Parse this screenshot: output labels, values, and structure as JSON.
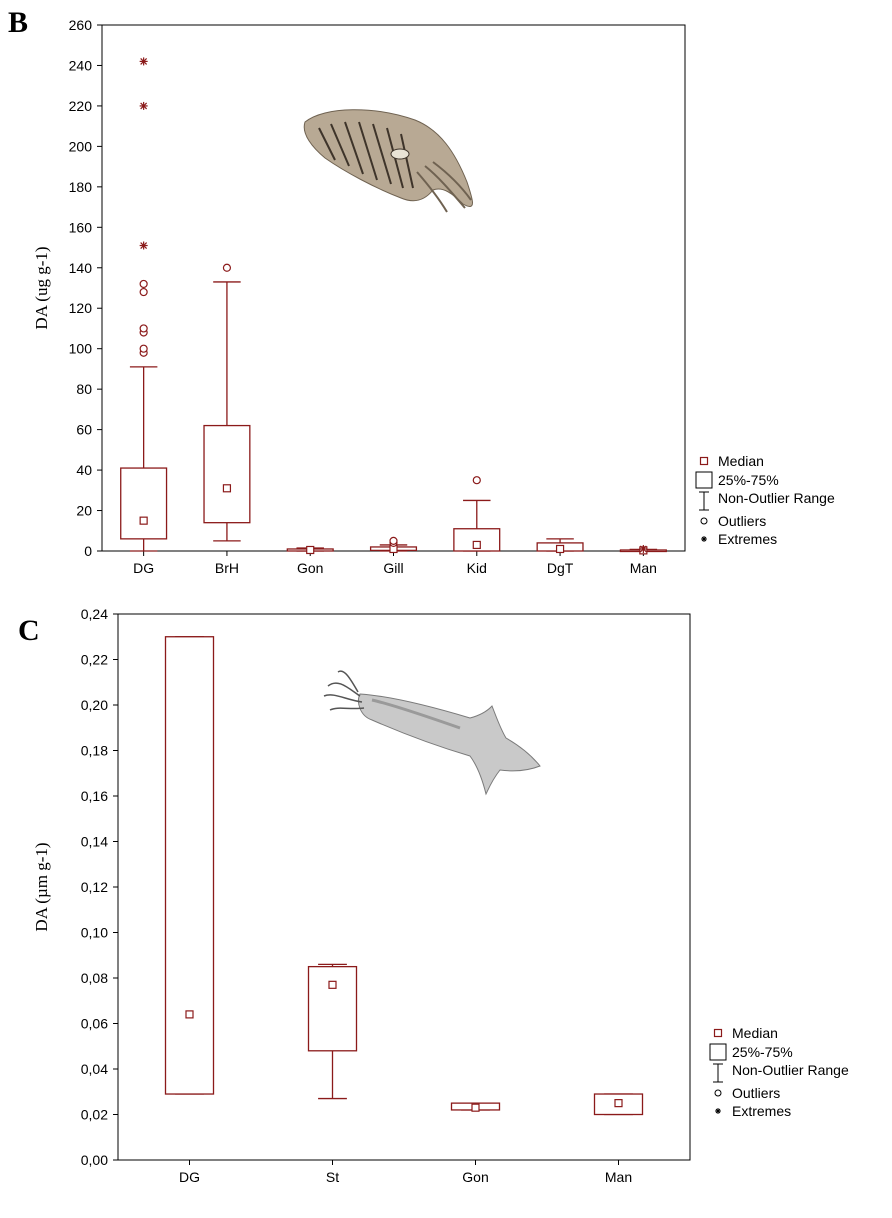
{
  "chart_data": [
    {
      "type": "box",
      "panel_label": "B",
      "ylabel": "DA (ug g-1)",
      "ylim": [
        0,
        260
      ],
      "yticks": [
        "0",
        "20",
        "40",
        "60",
        "80",
        "100",
        "120",
        "140",
        "160",
        "180",
        "200",
        "220",
        "240",
        "260"
      ],
      "categories": [
        "DG",
        "BrH",
        "Gon",
        "Gill",
        "Kid",
        "DgT",
        "Man"
      ],
      "boxes": [
        {
          "category": "DG",
          "median": 15,
          "q1": 6,
          "q3": 41,
          "whisker_low": 0,
          "whisker_high": 91,
          "outliers": [
            98,
            100,
            108,
            110,
            128,
            132
          ],
          "extremes": [
            151,
            220,
            242
          ]
        },
        {
          "category": "BrH",
          "median": 31,
          "q1": 14,
          "q3": 62,
          "whisker_low": 5,
          "whisker_high": 133,
          "outliers": [
            140
          ],
          "extremes": []
        },
        {
          "category": "Gon",
          "median": 0.5,
          "q1": 0,
          "q3": 1,
          "whisker_low": 0,
          "whisker_high": 1.5,
          "outliers": [],
          "extremes": []
        },
        {
          "category": "Gill",
          "median": 1,
          "q1": 0.3,
          "q3": 2,
          "whisker_low": 0,
          "whisker_high": 3,
          "outliers": [
            4,
            5
          ],
          "extremes": []
        },
        {
          "category": "Kid",
          "median": 3,
          "q1": 0,
          "q3": 11,
          "whisker_low": 0,
          "whisker_high": 25,
          "outliers": [
            35
          ],
          "extremes": []
        },
        {
          "category": "DgT",
          "median": 1,
          "q1": 0,
          "q3": 4,
          "whisker_low": 0,
          "whisker_high": 6,
          "outliers": [],
          "extremes": []
        },
        {
          "category": "Man",
          "median": 0.3,
          "q1": 0,
          "q3": 0.5,
          "whisker_low": 0,
          "whisker_high": 0.8,
          "outliers": [],
          "extremes": [
            1
          ]
        }
      ],
      "legend": {
        "median": "Median",
        "box": "25%-75%",
        "whisker": "Non-Outlier Range",
        "outliers": "Outliers",
        "extremes": "Extremes"
      },
      "legend_position": "right-bottom",
      "grid": false
    },
    {
      "type": "box",
      "panel_label": "C",
      "ylabel": "DA (µm g-1)",
      "ylim": [
        0,
        0.24
      ],
      "yticks": [
        "0,00",
        "0,02",
        "0,04",
        "0,06",
        "0,08",
        "0,10",
        "0,12",
        "0,14",
        "0,16",
        "0,18",
        "0,20",
        "0,22",
        "0,24"
      ],
      "categories": [
        "DG",
        "St",
        "Gon",
        "Man"
      ],
      "boxes": [
        {
          "category": "DG",
          "median": 0.064,
          "q1": 0.029,
          "q3": 0.23,
          "whisker_low": 0.029,
          "whisker_high": 0.23,
          "outliers": [],
          "extremes": []
        },
        {
          "category": "St",
          "median": 0.077,
          "q1": 0.048,
          "q3": 0.085,
          "whisker_low": 0.027,
          "whisker_high": 0.086,
          "outliers": [],
          "extremes": []
        },
        {
          "category": "Gon",
          "median": 0.023,
          "q1": 0.022,
          "q3": 0.025,
          "whisker_low": 0.022,
          "whisker_high": 0.025,
          "outliers": [],
          "extremes": []
        },
        {
          "category": "Man",
          "median": 0.025,
          "q1": 0.02,
          "q3": 0.029,
          "whisker_low": 0.02,
          "whisker_high": 0.029,
          "outliers": [],
          "extremes": []
        }
      ],
      "legend": {
        "median": "Median",
        "box": "25%-75%",
        "whisker": "Non-Outlier Range",
        "outliers": "Outliers",
        "extremes": "Extremes"
      },
      "legend_position": "right-bottom",
      "grid": false
    }
  ],
  "colors": {
    "series": "#8b1a1a",
    "axis": "#000000"
  },
  "icons": {
    "panel_b": "cuttlefish-illustration",
    "panel_c": "squid-illustration"
  }
}
